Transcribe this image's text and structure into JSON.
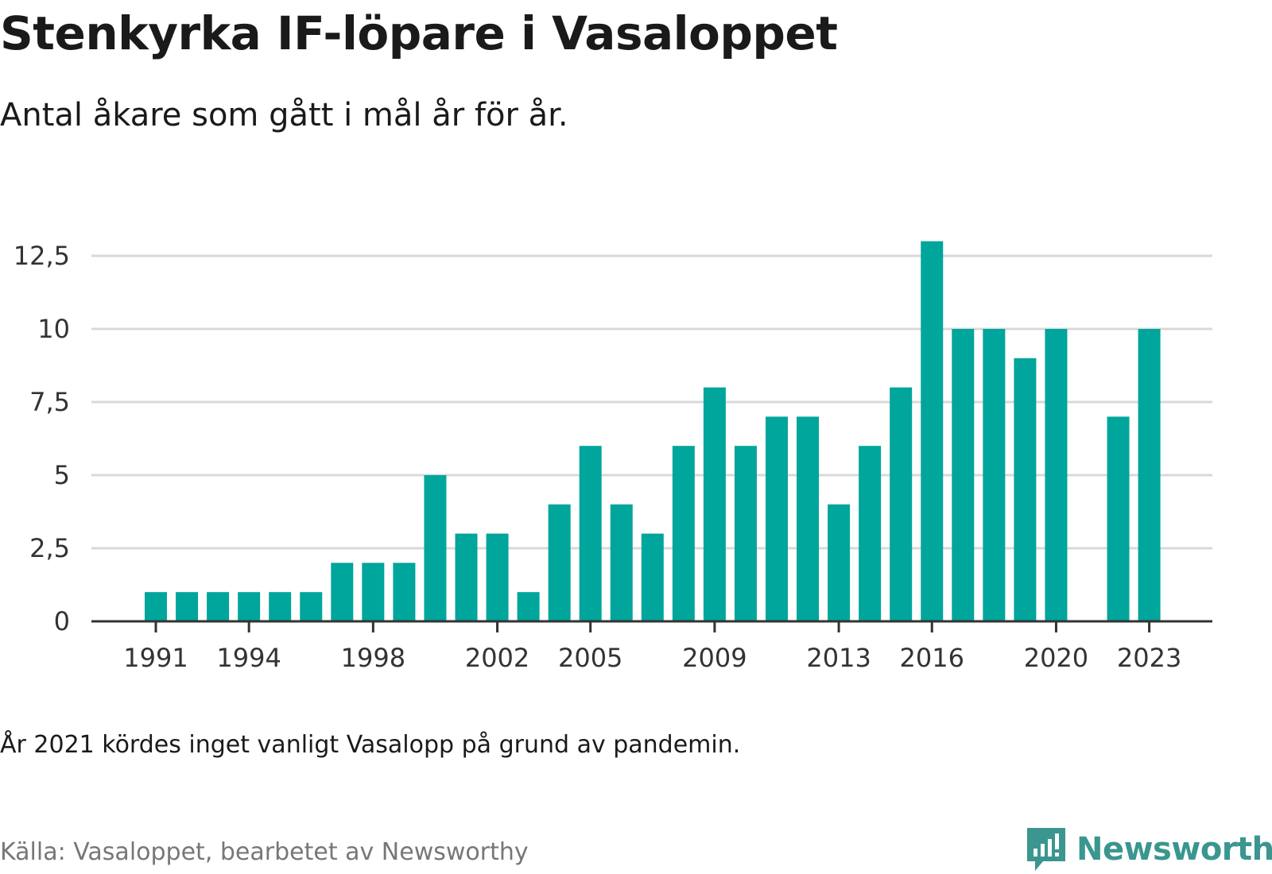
{
  "header": {
    "title": "Stenkyrka IF-löpare i Vasaloppet",
    "subtitle": "Antal åkare som gått i mål år för år."
  },
  "footer": {
    "note": "År 2021 kördes inget vanligt Vasalopp på grund av pandemin.",
    "source": "Källa: Vasaloppet, bearbetet av Newsworthy",
    "logo_text": "Newsworthy"
  },
  "colors": {
    "bar": "#00a59b",
    "grid": "#d9d9d9",
    "axis": "#333333",
    "logo": "#3a968f"
  },
  "chart_data": {
    "type": "bar",
    "title": "Stenkyrka IF-löpare i Vasaloppet",
    "subtitle": "Antal åkare som gått i mål år för år.",
    "xlabel": "",
    "ylabel": "",
    "categories": [
      1991,
      1992,
      1993,
      1994,
      1995,
      1996,
      1997,
      1998,
      1999,
      2000,
      2001,
      2002,
      2003,
      2004,
      2005,
      2006,
      2007,
      2008,
      2009,
      2010,
      2011,
      2012,
      2013,
      2014,
      2015,
      2016,
      2017,
      2018,
      2019,
      2020,
      2021,
      2022,
      2023
    ],
    "values": [
      1,
      1,
      1,
      1,
      1,
      1,
      2,
      2,
      2,
      5,
      3,
      3,
      1,
      4,
      6,
      4,
      3,
      6,
      8,
      6,
      7,
      7,
      4,
      6,
      8,
      13,
      10,
      10,
      9,
      10,
      null,
      7,
      10
    ],
    "ylim": [
      0,
      13
    ],
    "yticks": [
      0,
      2.5,
      5,
      7.5,
      10,
      12.5
    ],
    "ytick_labels": [
      "0",
      "2,5",
      "5",
      "7,5",
      "10",
      "12,5"
    ],
    "xticks": [
      1991,
      1994,
      1998,
      2002,
      2005,
      2009,
      2013,
      2016,
      2020,
      2023
    ],
    "xtick_labels": [
      "1991",
      "1994",
      "1998",
      "2002",
      "2005",
      "2009",
      "2013",
      "2016",
      "2020",
      "2023"
    ],
    "grid": true,
    "legend": "none"
  }
}
